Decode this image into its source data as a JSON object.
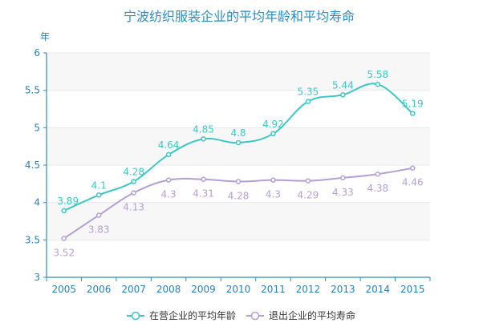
{
  "chart_data": {
    "type": "line",
    "title": "宁波纺织服装企业的平均年龄和平均寿命",
    "y_unit": "年",
    "x": [
      "2005",
      "2006",
      "2007",
      "2008",
      "2009",
      "2010",
      "2011",
      "2012",
      "2013",
      "2014",
      "2015"
    ],
    "ylim": [
      3,
      6
    ],
    "yticks": [
      "3",
      "3.5",
      "4",
      "4.5",
      "5",
      "5.5",
      "6"
    ],
    "grid": true,
    "legend_position": "bottom",
    "series": [
      {
        "name": "在营企业的平均年龄",
        "color": "#3cc7c2",
        "values": [
          3.89,
          4.1,
          4.28,
          4.64,
          4.85,
          4.8,
          4.92,
          5.35,
          5.44,
          5.58,
          5.19
        ],
        "labels": [
          "3.89",
          "4.1",
          "4.28",
          "4.64",
          "4.85",
          "4.8",
          "4.92",
          "5.35",
          "5.44",
          "5.58",
          "5.19"
        ]
      },
      {
        "name": "退出企业的平均寿命",
        "color": "#b39fd6",
        "values": [
          3.52,
          3.83,
          4.13,
          4.3,
          4.31,
          4.28,
          4.3,
          4.29,
          4.33,
          4.38,
          4.46
        ],
        "labels": [
          "3.52",
          "3.83",
          "4.13",
          "4.3",
          "4.31",
          "4.28",
          "4.3",
          "4.29",
          "4.33",
          "4.38",
          "4.46"
        ]
      }
    ]
  }
}
